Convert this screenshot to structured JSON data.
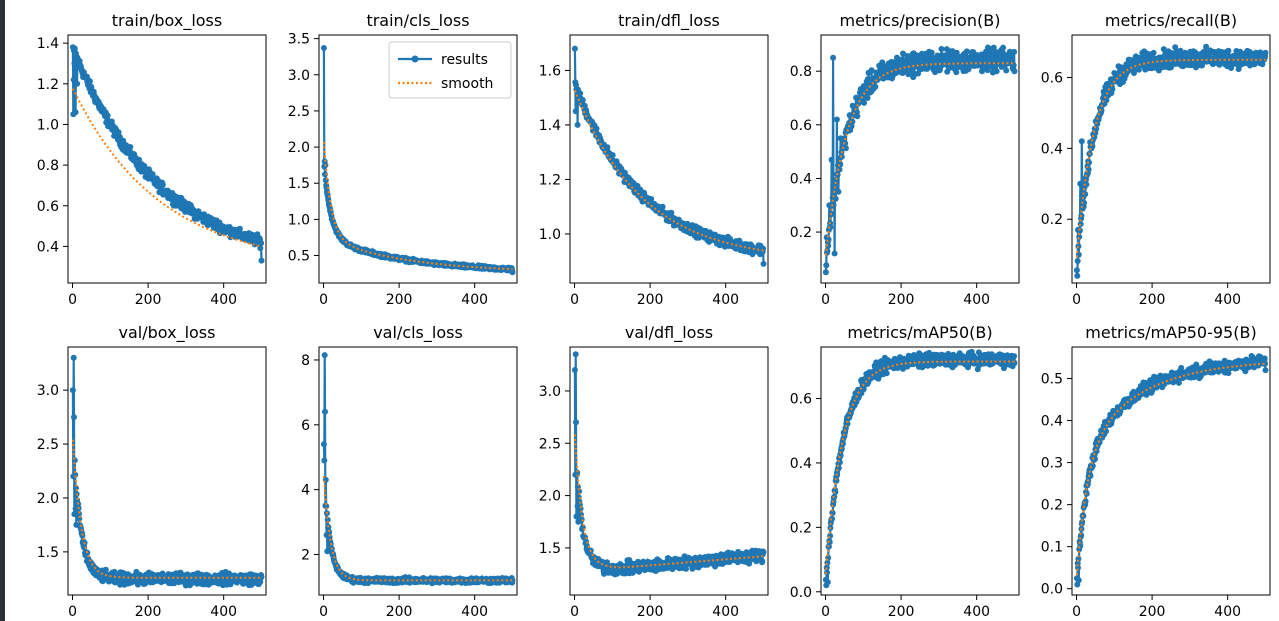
{
  "figure": {
    "colors": {
      "results": "#1f77b4",
      "smooth": "#ff7f0e",
      "axes": "#000000",
      "background": "#ffffff"
    },
    "legend": {
      "items": [
        "results",
        "smooth"
      ],
      "placement": "top-right",
      "panel": 1
    }
  },
  "chart_data": [
    {
      "type": "line",
      "title": "train/box_loss",
      "xlim": [
        -12,
        512
      ],
      "ylim": [
        0.22,
        1.44
      ],
      "xticks": [
        0,
        200,
        400
      ],
      "yticks": [
        0.4,
        0.6,
        0.8,
        1.0,
        1.2,
        1.4
      ],
      "ytick_labels": [
        "0.4",
        "0.6",
        "0.8",
        "1.0",
        "1.2",
        "1.4"
      ],
      "grid": false,
      "series": [
        {
          "name": "results",
          "shape": "decay",
          "start": 1.38,
          "end": 0.3,
          "tau": 230,
          "noise": 0.022,
          "spikes": [
            [
              1,
              1.38
            ],
            [
              2,
              1.05
            ],
            [
              3,
              1.22
            ],
            [
              5,
              1.3
            ],
            [
              8,
              1.06
            ],
            [
              12,
              1.2
            ]
          ],
          "final": 0.33
        },
        {
          "name": "smooth",
          "shape": "decay",
          "start": 1.18,
          "end": 0.3,
          "tau": 230
        }
      ]
    },
    {
      "type": "line",
      "title": "train/cls_loss",
      "xlim": [
        -12,
        512
      ],
      "ylim": [
        0.12,
        3.55
      ],
      "xticks": [
        0,
        200,
        400
      ],
      "yticks": [
        0.5,
        1.0,
        1.5,
        2.0,
        2.5,
        3.0,
        3.5
      ],
      "ytick_labels": [
        "0.5",
        "1.0",
        "1.5",
        "2.0",
        "2.5",
        "3.0",
        "3.5"
      ],
      "grid": false,
      "series": [
        {
          "name": "results",
          "shape": "decay2",
          "start": 1.85,
          "mid": 0.75,
          "end": 0.26,
          "tau1": 18,
          "tau2": 220,
          "noise": 0.02,
          "spikes": [
            [
              1,
              3.37
            ],
            [
              3,
              1.8
            ],
            [
              5,
              1.75
            ]
          ],
          "final": 0.27
        },
        {
          "name": "smooth",
          "shape": "decay2",
          "start": 2.15,
          "mid": 0.75,
          "end": 0.26,
          "tau1": 18,
          "tau2": 220
        }
      ]
    },
    {
      "type": "line",
      "title": "train/dfl_loss",
      "xlim": [
        -12,
        512
      ],
      "ylim": [
        0.82,
        1.73
      ],
      "xticks": [
        0,
        200,
        400
      ],
      "yticks": [
        1.0,
        1.2,
        1.4,
        1.6
      ],
      "ytick_labels": [
        "1.0",
        "1.2",
        "1.4",
        "1.6"
      ],
      "grid": false,
      "series": [
        {
          "name": "results",
          "shape": "decay",
          "start": 1.55,
          "end": 0.9,
          "tau": 180,
          "noise": 0.015,
          "spikes": [
            [
              1,
              1.68
            ],
            [
              3,
              1.45
            ],
            [
              5,
              1.53
            ],
            [
              8,
              1.4
            ]
          ],
          "final": 0.89
        },
        {
          "name": "smooth",
          "shape": "decay",
          "start": 1.53,
          "end": 0.9,
          "tau": 180
        }
      ]
    },
    {
      "type": "line",
      "title": "metrics/precision(B)",
      "xlim": [
        -12,
        512
      ],
      "ylim": [
        0.01,
        0.935
      ],
      "xticks": [
        0,
        200,
        400
      ],
      "yticks": [
        0.2,
        0.4,
        0.6,
        0.8
      ],
      "ytick_labels": [
        "0.2",
        "0.4",
        "0.6",
        "0.8"
      ],
      "grid": false,
      "series": [
        {
          "name": "results",
          "shape": "rise",
          "start": 0.08,
          "end": 0.84,
          "tau": 55,
          "noise": 0.035,
          "spikes": [
            [
              1,
              0.05
            ],
            [
              3,
              0.18
            ],
            [
              5,
              0.13
            ],
            [
              10,
              0.3
            ],
            [
              16,
              0.47
            ],
            [
              20,
              0.85
            ],
            [
              24,
              0.12
            ],
            [
              30,
              0.62
            ],
            [
              34,
              0.35
            ],
            [
              40,
              0.55
            ]
          ],
          "final": 0.8
        },
        {
          "name": "smooth",
          "shape": "rise",
          "start": 0.1,
          "end": 0.83,
          "tau": 55
        }
      ]
    },
    {
      "type": "line",
      "title": "metrics/recall(B)",
      "xlim": [
        -12,
        512
      ],
      "ylim": [
        0.02,
        0.72
      ],
      "xticks": [
        0,
        200,
        400
      ],
      "yticks": [
        0.2,
        0.4,
        0.6
      ],
      "ytick_labels": [
        "0.2",
        "0.4",
        "0.6"
      ],
      "grid": false,
      "series": [
        {
          "name": "results",
          "shape": "rise",
          "start": 0.06,
          "end": 0.655,
          "tau": 45,
          "noise": 0.022,
          "spikes": [
            [
              2,
              0.04
            ],
            [
              4,
              0.17
            ],
            [
              6,
              0.1
            ],
            [
              10,
              0.3
            ],
            [
              14,
              0.42
            ]
          ],
          "final": 0.67
        },
        {
          "name": "smooth",
          "shape": "rise",
          "start": 0.08,
          "end": 0.65,
          "tau": 45
        }
      ]
    },
    {
      "type": "line",
      "title": "val/box_loss",
      "xlim": [
        -12,
        512
      ],
      "ylim": [
        1.1,
        3.4
      ],
      "xticks": [
        0,
        200,
        400
      ],
      "yticks": [
        1.5,
        2.0,
        2.5,
        3.0
      ],
      "ytick_labels": [
        "1.5",
        "2.0",
        "2.5",
        "3.0"
      ],
      "grid": false,
      "series": [
        {
          "name": "results",
          "shape": "decay",
          "start": 2.6,
          "end": 1.25,
          "tau": 20,
          "noise": 0.045,
          "spikes": [
            [
              1,
              3.0
            ],
            [
              2,
              2.2
            ],
            [
              3,
              3.3
            ],
            [
              4,
              2.75
            ],
            [
              5,
              1.85
            ],
            [
              6,
              2.35
            ],
            [
              8,
              1.9
            ],
            [
              10,
              1.75
            ]
          ],
          "final": 1.27
        },
        {
          "name": "smooth",
          "shape": "decay",
          "start": 2.6,
          "end": 1.26,
          "tau": 22
        }
      ]
    },
    {
      "type": "line",
      "title": "val/cls_loss",
      "xlim": [
        -12,
        512
      ],
      "ylim": [
        0.75,
        8.4
      ],
      "xticks": [
        0,
        200,
        400
      ],
      "yticks": [
        2,
        4,
        6,
        8
      ],
      "ytick_labels": [
        "2",
        "4",
        "6",
        "8"
      ],
      "grid": false,
      "series": [
        {
          "name": "results",
          "shape": "decay",
          "start": 4.8,
          "end": 1.2,
          "tau": 16,
          "noise": 0.07,
          "spikes": [
            [
              1,
              5.4
            ],
            [
              2,
              4.9
            ],
            [
              3,
              8.15
            ],
            [
              4,
              6.4
            ],
            [
              5,
              3.5
            ],
            [
              6,
              4.3
            ],
            [
              8,
              2.6
            ],
            [
              10,
              2.1
            ]
          ],
          "final": 1.2
        },
        {
          "name": "smooth",
          "shape": "decay",
          "start": 4.6,
          "end": 1.2,
          "tau": 18
        }
      ]
    },
    {
      "type": "line",
      "title": "val/dfl_loss",
      "xlim": [
        -12,
        512
      ],
      "ylim": [
        1.05,
        3.42
      ],
      "xticks": [
        0,
        200,
        400
      ],
      "yticks": [
        1.5,
        2.0,
        2.5,
        3.0
      ],
      "ytick_labels": [
        "1.5",
        "2.0",
        "2.5",
        "3.0"
      ],
      "grid": false,
      "series": [
        {
          "name": "results",
          "shape": "valley",
          "start": 2.6,
          "min": 1.3,
          "end": 1.43,
          "tau": 18,
          "noise": 0.05,
          "spikes": [
            [
              1,
              3.2
            ],
            [
              2,
              2.2
            ],
            [
              3,
              3.35
            ],
            [
              4,
              2.7
            ],
            [
              5,
              1.8
            ],
            [
              6,
              2.2
            ],
            [
              8,
              1.9
            ],
            [
              10,
              1.75
            ]
          ],
          "final": 1.46
        },
        {
          "name": "smooth",
          "shape": "valley",
          "start": 2.65,
          "min": 1.31,
          "end": 1.42,
          "tau": 20
        }
      ]
    },
    {
      "type": "line",
      "title": "metrics/mAP50(B)",
      "xlim": [
        -12,
        512
      ],
      "ylim": [
        -0.01,
        0.76
      ],
      "xticks": [
        0,
        200,
        400
      ],
      "yticks": [
        0.0,
        0.2,
        0.4,
        0.6
      ],
      "ytick_labels": [
        "0.0",
        "0.2",
        "0.4",
        "0.6"
      ],
      "grid": false,
      "series": [
        {
          "name": "results",
          "shape": "rise",
          "start": 0.02,
          "end": 0.72,
          "tau": 45,
          "noise": 0.018,
          "spikes": [
            [
              2,
              0.02
            ],
            [
              4,
              0.06
            ],
            [
              6,
              0.03
            ]
          ],
          "final": 0.71
        },
        {
          "name": "smooth",
          "shape": "rise",
          "start": 0.04,
          "end": 0.715,
          "tau": 45
        }
      ]
    },
    {
      "type": "line",
      "title": "metrics/mAP50-95(B)",
      "xlim": [
        -12,
        512
      ],
      "ylim": [
        -0.015,
        0.575
      ],
      "xticks": [
        0,
        200,
        400
      ],
      "yticks": [
        0.0,
        0.1,
        0.2,
        0.3,
        0.4,
        0.5
      ],
      "ytick_labels": [
        "0.0",
        "0.1",
        "0.2",
        "0.3",
        "0.4",
        "0.5"
      ],
      "grid": false,
      "series": [
        {
          "name": "results",
          "shape": "rise2",
          "start": 0.01,
          "end": 0.55,
          "tau": 60,
          "noise": 0.013,
          "spikes": [
            [
              2,
              0.01
            ],
            [
              4,
              0.05
            ],
            [
              6,
              0.02
            ]
          ],
          "final": 0.52
        },
        {
          "name": "smooth",
          "shape": "rise2",
          "start": 0.02,
          "end": 0.545,
          "tau": 60
        }
      ]
    }
  ]
}
